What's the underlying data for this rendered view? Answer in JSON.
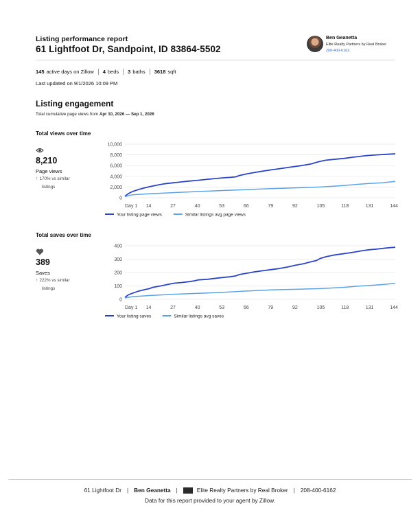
{
  "report": {
    "title": "Listing performance report",
    "address": "61 Lightfoot Dr, Sandpoint, ID 83864-5502"
  },
  "agent": {
    "name": "Ben Geanetta",
    "company": "Elite Realty Partners by Real Broker",
    "phone": "208-400-6162"
  },
  "stats": {
    "active_days": "145",
    "active_days_label": "active days on Zillow",
    "beds": "4",
    "beds_label": "beds",
    "baths": "3",
    "baths_label": "baths",
    "sqft": "3618",
    "sqft_label": "sqft",
    "last_updated": "Last updated on 9/1/2026 10:09 PM"
  },
  "engagement": {
    "title": "Listing engagement",
    "subtitle_prefix": "Total cumulative page views from ",
    "date_range": "Apr 10, 2026 — Sep 1, 2026"
  },
  "views_metric": {
    "heading": "Total views over time",
    "icon": "eye-icon",
    "value": "8,210",
    "label": "Page views",
    "compare_line1": "170% vs similar",
    "compare_line2": "listings"
  },
  "saves_metric": {
    "heading": "Total saves over time",
    "icon": "heart-icon",
    "value": "389",
    "label": "Saves",
    "compare_line1": "222% vs similar",
    "compare_line2": "listings"
  },
  "colors": {
    "primary_series": "#2b43c6",
    "secondary_series": "#5aa3e6",
    "grid": "#e6e6e6",
    "link": "#3b6ddb"
  },
  "chart_data": [
    {
      "type": "line",
      "title": "Total views over time",
      "x_ticks": [
        "Day 1",
        "14",
        "27",
        "40",
        "53",
        "66",
        "79",
        "92",
        "105",
        "118",
        "131",
        "144"
      ],
      "y_ticks": [
        "0",
        "2,000",
        "4,000",
        "6,000",
        "8,000",
        "10,000"
      ],
      "ylim": [
        0,
        10000
      ],
      "xlim": [
        1,
        145
      ],
      "grid": true,
      "legend_position": "bottom-left",
      "series": [
        {
          "name": "Your listing page views",
          "color": "#2b43c6",
          "x": [
            1,
            3,
            5,
            8,
            11,
            14,
            18,
            22,
            27,
            31,
            35,
            40,
            45,
            50,
            53,
            57,
            60,
            62,
            66,
            70,
            75,
            79,
            83,
            88,
            92,
            96,
            100,
            103,
            105,
            108,
            112,
            118,
            122,
            127,
            131,
            135,
            140,
            145
          ],
          "y": [
            300,
            800,
            1150,
            1500,
            1800,
            2050,
            2350,
            2600,
            2800,
            2950,
            3100,
            3250,
            3450,
            3600,
            3700,
            3800,
            3900,
            4150,
            4450,
            4700,
            5000,
            5200,
            5400,
            5650,
            5850,
            6050,
            6300,
            6600,
            6800,
            7000,
            7150,
            7350,
            7550,
            7750,
            7900,
            8000,
            8100,
            8210
          ]
        },
        {
          "name": "Similar listings avg page views",
          "color": "#5aa3e6",
          "x": [
            1,
            5,
            14,
            27,
            40,
            53,
            66,
            79,
            92,
            105,
            112,
            118,
            125,
            131,
            138,
            145
          ],
          "y": [
            200,
            550,
            750,
            950,
            1150,
            1350,
            1500,
            1700,
            1850,
            2000,
            2150,
            2300,
            2500,
            2650,
            2800,
            3050
          ]
        }
      ]
    },
    {
      "type": "line",
      "title": "Total saves over time",
      "x_ticks": [
        "Day 1",
        "14",
        "27",
        "40",
        "53",
        "66",
        "79",
        "92",
        "105",
        "118",
        "131",
        "144"
      ],
      "y_ticks": [
        "0",
        "100",
        "200",
        "300",
        "400"
      ],
      "ylim": [
        0,
        400
      ],
      "xlim": [
        1,
        145
      ],
      "grid": true,
      "legend_position": "bottom-left",
      "series": [
        {
          "name": "Your listing saves",
          "color": "#2b43c6",
          "x": [
            1,
            3,
            5,
            8,
            11,
            14,
            16,
            20,
            24,
            27,
            31,
            35,
            38,
            40,
            45,
            50,
            53,
            57,
            60,
            62,
            66,
            70,
            75,
            79,
            83,
            88,
            92,
            96,
            100,
            103,
            105,
            108,
            112,
            118,
            122,
            127,
            131,
            135,
            140,
            145
          ],
          "y": [
            15,
            35,
            45,
            60,
            70,
            80,
            90,
            100,
            112,
            120,
            125,
            132,
            138,
            145,
            150,
            158,
            163,
            168,
            175,
            185,
            195,
            205,
            215,
            222,
            230,
            242,
            255,
            265,
            280,
            290,
            305,
            318,
            330,
            342,
            350,
            362,
            370,
            375,
            383,
            389
          ]
        },
        {
          "name": "Similar listings avg saves",
          "color": "#5aa3e6",
          "x": [
            1,
            5,
            14,
            27,
            40,
            53,
            66,
            79,
            92,
            105,
            112,
            118,
            125,
            131,
            138,
            145
          ],
          "y": [
            10,
            20,
            28,
            38,
            45,
            52,
            62,
            70,
            75,
            80,
            85,
            90,
            98,
            103,
            110,
            120
          ]
        }
      ]
    }
  ],
  "footer": {
    "address": "61 Lightfoot Dr",
    "agent": "Ben Geanetta",
    "company": "Elite Realty Partners by Real Broker",
    "phone": "208-400-6162",
    "note": "Data for this report provided to your agent by Zillow."
  }
}
